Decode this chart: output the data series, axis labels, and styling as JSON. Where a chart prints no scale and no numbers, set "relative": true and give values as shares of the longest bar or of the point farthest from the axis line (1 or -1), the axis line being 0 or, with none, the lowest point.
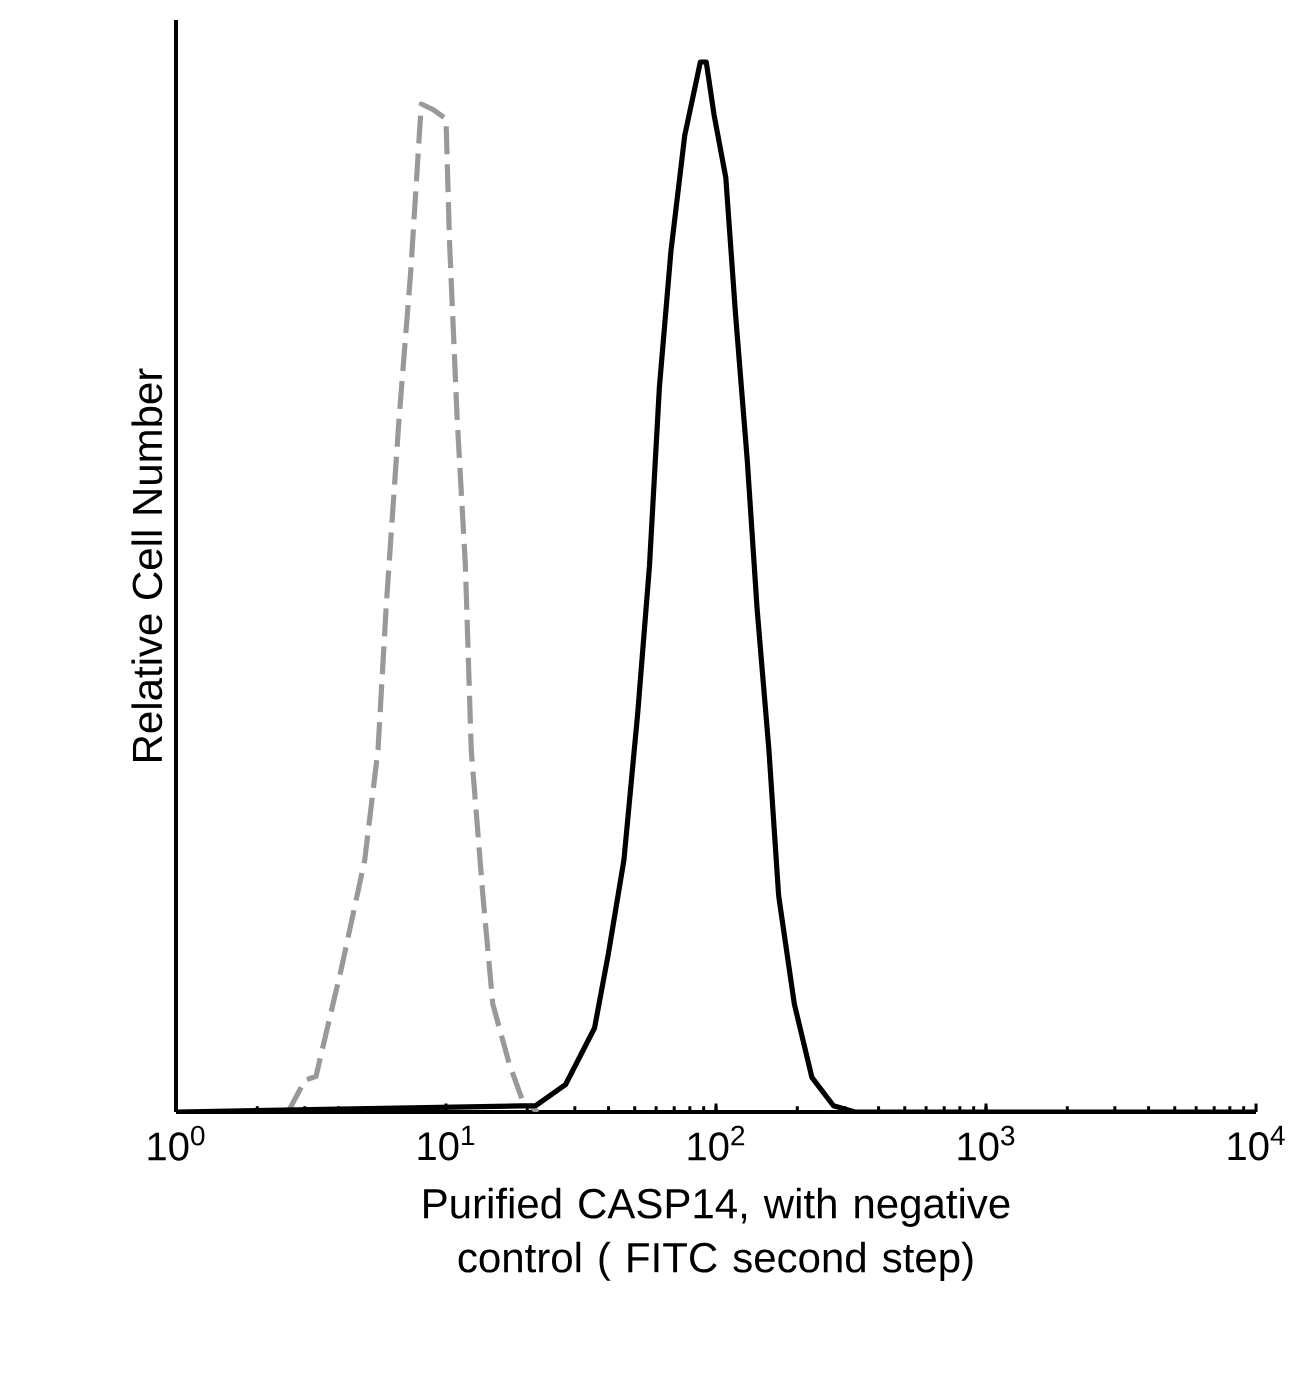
{
  "chart_data": {
    "type": "line",
    "relative": true,
    "log": "x",
    "xlabel": "Purified  CASP14,  with negative control ( FITC second step)",
    "ylabel": "Relative Cell Number",
    "xlim": [
      1,
      10000
    ],
    "xticks": [
      {
        "value": 1,
        "label": "10$^{0}$"
      },
      {
        "value": 10,
        "label": "10$^{1}$"
      },
      {
        "value": 100,
        "label": "10$^{2}$"
      },
      {
        "value": 1000,
        "label": "10$^{3}$"
      },
      {
        "value": 10000,
        "label": "10$^{4}$"
      }
    ],
    "grid": false,
    "marker": "none",
    "series": [
      {
        "color": "#999999",
        "line_style": "dashed",
        "x": [
          2.6,
          3.0,
          3.3,
          4.1,
          5.0,
          5.6,
          6.0,
          6.7,
          7.4,
          8.1,
          8.9,
          10.0,
          10.3,
          11.0,
          11.8,
          12.4,
          13.7,
          14.9,
          17.1,
          19.2,
          21.9
        ],
        "values": [
          0,
          0.03,
          0.034,
          0.137,
          0.24,
          0.345,
          0.48,
          0.66,
          0.8,
          0.96,
          0.955,
          0.946,
          0.83,
          0.66,
          0.52,
          0.345,
          0.206,
          0.103,
          0.047,
          0.011,
          0
        ]
      },
      {
        "color": "#000000",
        "line_style": "solid",
        "x": [
          1,
          21.5,
          27.7,
          35.5,
          39.9,
          45.6,
          51.3,
          56.7,
          61.7,
          68.1,
          76.6,
          87.5,
          92.0,
          98.3,
          108.7,
          118.1,
          130.6,
          141.9,
          157.0,
          170.6,
          195.0,
          226.5,
          272.3,
          326.9,
          10000
        ],
        "values": [
          0,
          0.006,
          0.026,
          0.08,
          0.15,
          0.24,
          0.38,
          0.52,
          0.69,
          0.82,
          0.93,
          1.0,
          1.0,
          0.95,
          0.89,
          0.76,
          0.62,
          0.48,
          0.345,
          0.206,
          0.103,
          0.033,
          0.006,
          0,
          0
        ]
      }
    ]
  }
}
